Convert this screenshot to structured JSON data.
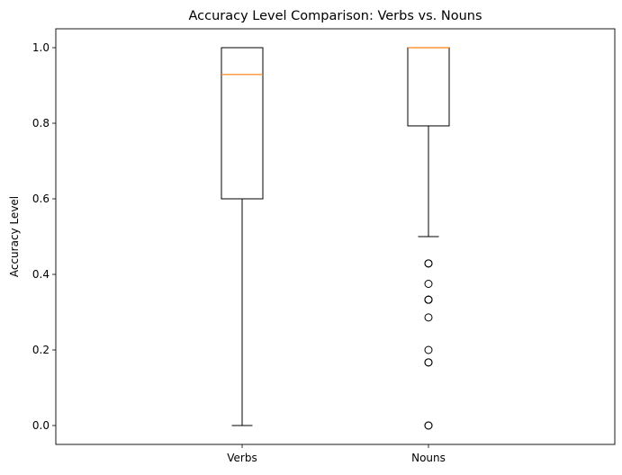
{
  "chart_data": {
    "type": "box",
    "title": "Accuracy Level Comparison: Verbs vs. Nouns",
    "xlabel": "",
    "ylabel": "Accuracy Level",
    "ylim": [
      -0.05,
      1.05
    ],
    "yticks": [
      "0.0",
      "0.2",
      "0.4",
      "0.6",
      "0.8",
      "1.0"
    ],
    "grid": false,
    "categories": [
      "Verbs",
      "Nouns"
    ],
    "boxes": [
      {
        "name": "Verbs",
        "whisker_low": 0.0,
        "q1": 0.6,
        "median": 0.929,
        "q3": 1.0,
        "whisker_high": 1.0,
        "outliers": []
      },
      {
        "name": "Nouns",
        "whisker_low": 0.5,
        "q1": 0.793,
        "median": 1.0,
        "q3": 1.0,
        "whisker_high": 1.0,
        "outliers": [
          0.0,
          0.0,
          0.167,
          0.167,
          0.2,
          0.286,
          0.333,
          0.333,
          0.333,
          0.375,
          0.429,
          0.429
        ]
      }
    ],
    "colors": {
      "box": "#000000",
      "median": "#ff7f0e",
      "background": "#ffffff"
    }
  }
}
